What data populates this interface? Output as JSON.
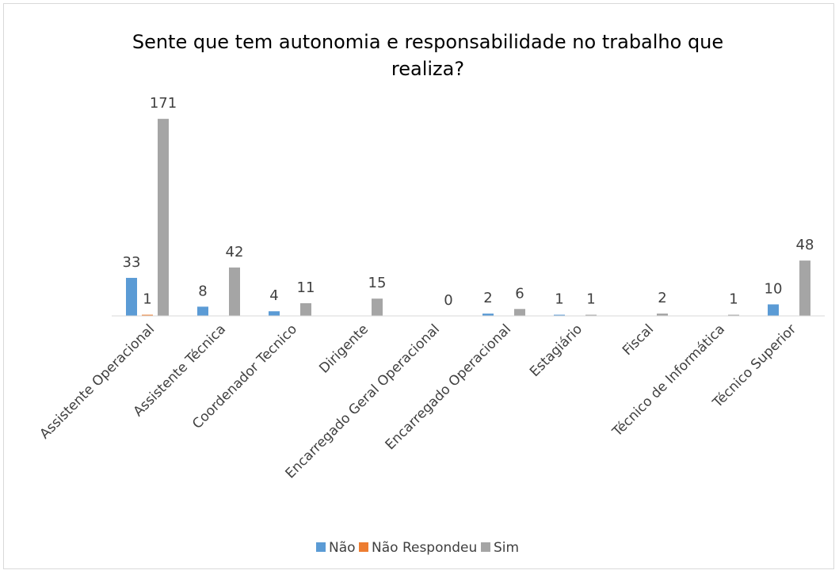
{
  "chart_data": {
    "type": "bar",
    "title": "Sente que tem autonomia e responsabilidade no trabalho que realiza?",
    "categories": [
      "Assistente Operacional",
      "Assistente Técnica",
      "Coordenador Tecnico",
      "Dirigente",
      "Encarregado Geral Operacional",
      "Encarregado Operacional",
      "Estagiário",
      "Fiscal",
      "Técnico de Informática",
      "Técnico Superior"
    ],
    "series": [
      {
        "name": "Não",
        "color": "#5b9bd5",
        "values": [
          33,
          8,
          4,
          null,
          null,
          2,
          1,
          null,
          null,
          10
        ]
      },
      {
        "name": "Não Respondeu",
        "color": "#ed7d31",
        "values": [
          1,
          null,
          null,
          null,
          null,
          null,
          null,
          null,
          null,
          null
        ]
      },
      {
        "name": "Sim",
        "color": "#a5a5a5",
        "values": [
          171,
          42,
          11,
          15,
          0,
          6,
          1,
          2,
          1,
          48
        ]
      }
    ],
    "ylim": [
      0,
      180
    ],
    "legend": "bottom"
  }
}
